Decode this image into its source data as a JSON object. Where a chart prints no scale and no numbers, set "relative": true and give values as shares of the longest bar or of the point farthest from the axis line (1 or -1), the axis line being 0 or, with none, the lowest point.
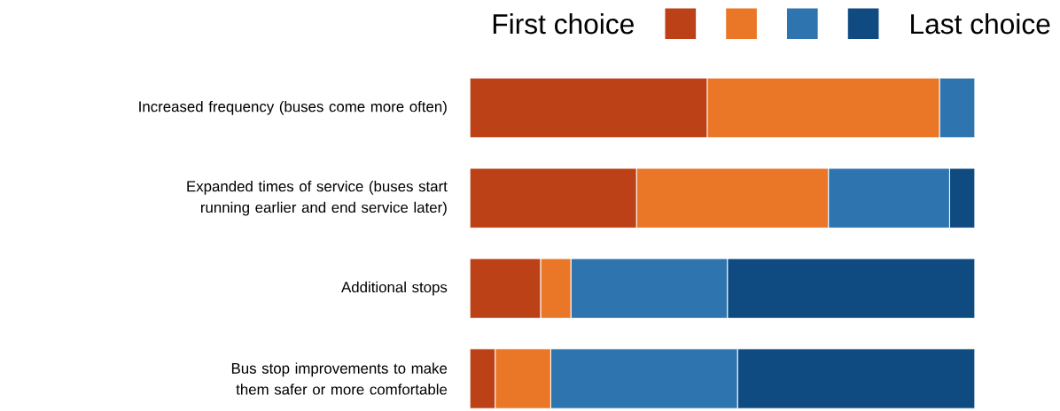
{
  "chart_data": {
    "type": "bar",
    "orientation": "horizontal",
    "stacked": true,
    "relative": true,
    "legend": "top right",
    "categories": [
      "Increased frequency (buses come more often)",
      "Expanded times of service (buses start running earlier and end service later)",
      "Additional stops",
      "Bus stop improvements to make them safer or more comfortable"
    ],
    "series": [
      {
        "name": "First choice",
        "color": "#bc4117",
        "values": [
          0.47,
          0.33,
          0.14,
          0.05
        ]
      },
      {
        "color": "#ea7627",
        "values": [
          0.46,
          0.38,
          0.06,
          0.11
        ]
      },
      {
        "color": "#2e75b0",
        "values": [
          0.07,
          0.24,
          0.31,
          0.37
        ]
      },
      {
        "name": "Last choice",
        "color": "#0f4a80",
        "values": [
          0,
          0.05,
          0.49,
          0.47
        ]
      }
    ]
  }
}
